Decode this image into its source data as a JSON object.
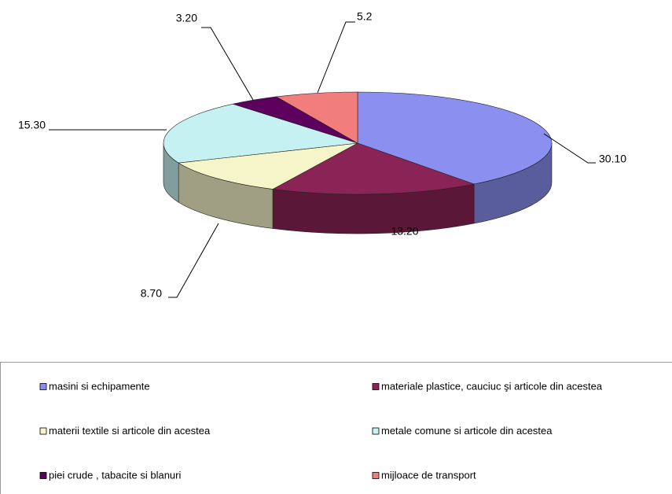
{
  "chart_data": {
    "type": "pie3d",
    "categories": [
      "masini si echipamente",
      "materiale plastice, cauciuc şi articole din acestea",
      "materii textile si articole din acestea",
      "metale comune si articole din acestea",
      "piei crude , tabacite si blanuri",
      "mijloace de transport"
    ],
    "values": [
      30.1,
      13.2,
      8.7,
      15.3,
      3.2,
      5.2
    ],
    "value_labels": [
      "30.10",
      "13.20",
      "8.70",
      "15.30",
      "3.20",
      "5.2"
    ],
    "colors": [
      "#8b8ff0",
      "#8b2456",
      "#f6f4c9",
      "#c6f1f2",
      "#5d005e",
      "#f17e7c"
    ]
  }
}
